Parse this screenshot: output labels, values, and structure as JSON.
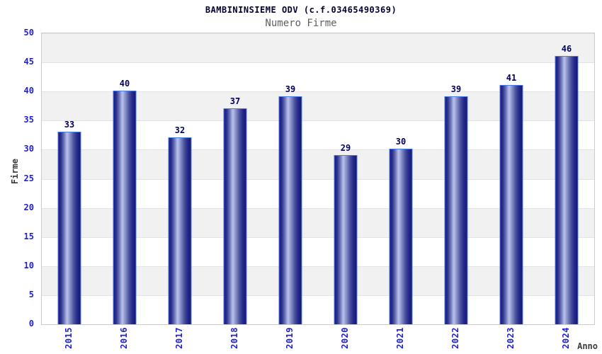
{
  "chart_data": {
    "type": "bar",
    "title": "BAMBININSIEME ODV (c.f.03465490369)",
    "subtitle": "Numero Firme",
    "xlabel": "Anno",
    "ylabel": "Firme",
    "categories": [
      "2015",
      "2016",
      "2017",
      "2018",
      "2019",
      "2020",
      "2021",
      "2022",
      "2023",
      "2024"
    ],
    "values": [
      33,
      40,
      32,
      37,
      39,
      29,
      30,
      39,
      41,
      46
    ],
    "ylim": [
      0,
      50
    ],
    "ytick_step": 5,
    "yticks": [
      0,
      5,
      10,
      15,
      20,
      25,
      30,
      35,
      40,
      45,
      50
    ],
    "grid": "horizontal alternating bands every 5 units",
    "legend": "none",
    "bar_value_labels_shown": true
  },
  "colors": {
    "title": "#000033",
    "subtitle": "#606060",
    "tick_label": "#2222cc",
    "value_label": "#000066",
    "axis_label": "#3a3a3a",
    "plot_border": "#cccccc",
    "gridline": "#e3e3e3",
    "band_gray": "#f1f1f1",
    "band_white": "#ffffff",
    "bar_border": "#4d7ce8",
    "bar_dark": "#1a1a7c",
    "bar_light": "#b9c1ea"
  }
}
